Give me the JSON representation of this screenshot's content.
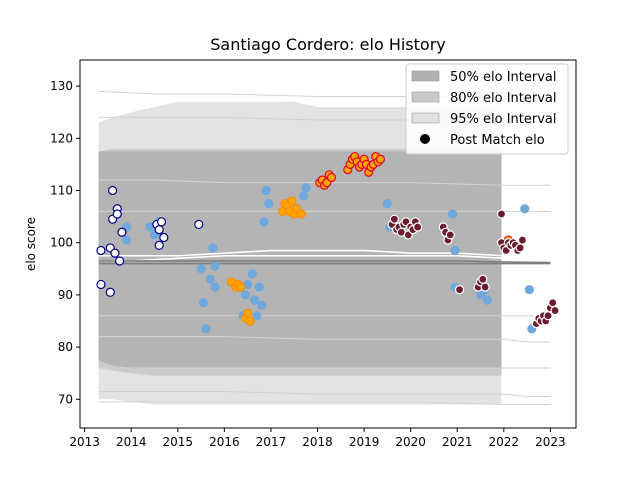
{
  "chart_data": {
    "type": "scatter",
    "title": "Santiago Cordero: elo History",
    "xlabel": "",
    "ylabel": "elo score",
    "xlim": [
      2012.9,
      2023.55
    ],
    "ylim": [
      64.5,
      135
    ],
    "x_ticks": [
      2013,
      2014,
      2015,
      2016,
      2017,
      2018,
      2019,
      2020,
      2021,
      2022,
      2023
    ],
    "x_tick_labels": [
      "2013",
      "2014",
      "2015",
      "2016",
      "2017",
      "2018",
      "2019",
      "2020",
      "2021",
      "2022",
      "2023"
    ],
    "y_ticks": [
      70,
      80,
      90,
      100,
      110,
      120,
      130
    ],
    "y_tick_labels": [
      "70",
      "80",
      "90",
      "100",
      "110",
      "120",
      "130"
    ],
    "legend": {
      "position": "top-right",
      "entries": [
        {
          "label": "50% elo Interval",
          "kind": "patch",
          "color": "#b0b0b0"
        },
        {
          "label": "80% elo Interval",
          "kind": "patch",
          "color": "#c8c8c8"
        },
        {
          "label": "95% elo Interval",
          "kind": "patch",
          "color": "#e0e0e0"
        },
        {
          "label": "Post Match elo",
          "kind": "marker",
          "color": "#000000"
        }
      ]
    },
    "bands": [
      {
        "name": "95% elo Interval",
        "color": "#e3e3e3",
        "x": [
          2013.3,
          2013.6,
          2014.0,
          2014.5,
          2015.0,
          2015.5,
          2016.0,
          2016.5,
          2017.0,
          2017.5,
          2018.0,
          2018.5,
          2019.0,
          2019.5,
          2020.0,
          2020.5,
          2021.0,
          2021.5,
          2021.95
        ],
        "lo": [
          70,
          70,
          69.5,
          69,
          69,
          69,
          69,
          69,
          69,
          69,
          69,
          69,
          69,
          69,
          69,
          69,
          69,
          69,
          69
        ],
        "hi": [
          123,
          124,
          125,
          126,
          127,
          127,
          127,
          127,
          127,
          127,
          126,
          126,
          126,
          126,
          126,
          126,
          126,
          126,
          126
        ]
      },
      {
        "name": "80% elo Interval",
        "color": "#cbcbcb",
        "x": [
          2013.3,
          2013.6,
          2014.0,
          2014.5,
          2015.0,
          2015.5,
          2016.0,
          2016.5,
          2017.0,
          2017.5,
          2018.0,
          2018.5,
          2019.0,
          2019.5,
          2020.0,
          2020.5,
          2021.0,
          2021.5,
          2021.95
        ],
        "lo": [
          76,
          75.5,
          75,
          74.5,
          74.5,
          74.5,
          74.5,
          74.5,
          74.5,
          74.5,
          74.5,
          74.5,
          74.5,
          74.5,
          74.5,
          74.5,
          74.5,
          74.5,
          74.5
        ],
        "hi": [
          117.5,
          118,
          118,
          118,
          118,
          118,
          118,
          118,
          118,
          118,
          118,
          118,
          118,
          118,
          118,
          118,
          118,
          118,
          118
        ]
      },
      {
        "name": "50% elo Interval",
        "color": "#b4b4b4",
        "x": [
          2013.3,
          2013.6,
          2014.0,
          2014.5,
          2015.0,
          2015.5,
          2016.0,
          2016.5,
          2017.0,
          2017.5,
          2018.0,
          2018.5,
          2019.0,
          2019.5,
          2020.0,
          2020.5,
          2021.0,
          2021.5,
          2021.95
        ],
        "lo": [
          77.5,
          76.5,
          76,
          76,
          76,
          76,
          76,
          76,
          76,
          76,
          76,
          76,
          76,
          76,
          76,
          76,
          76,
          76,
          76
        ],
        "hi": [
          117.5,
          117.5,
          117.5,
          117.5,
          117.5,
          117.5,
          117.5,
          117.5,
          117.5,
          117.5,
          117.5,
          117.5,
          117.5,
          117.5,
          117.5,
          117.5,
          117.5,
          117.5,
          117.5
        ]
      }
    ],
    "outer_lines": [
      {
        "color": "#d2d2d2",
        "x": [
          2013.3,
          2014.5,
          2016.0,
          2018.0,
          2020.0,
          2022.0,
          2022.5,
          2023.0
        ],
        "y": [
          129,
          128.5,
          128.5,
          128,
          128,
          128,
          127.5,
          127
        ]
      },
      {
        "color": "#d2d2d2",
        "x": [
          2013.3,
          2014.5,
          2016.0,
          2018.0,
          2020.0,
          2022.0,
          2022.5,
          2023.0
        ],
        "y": [
          124,
          124,
          124,
          123.5,
          123.5,
          123.5,
          123,
          123
        ]
      },
      {
        "color": "#d2d2d2",
        "x": [
          2013.3,
          2014.5,
          2016.0,
          2018.0,
          2020.0,
          2022.0,
          2022.5,
          2023.0
        ],
        "y": [
          112,
          112,
          111.5,
          111.5,
          111.5,
          111,
          111,
          111
        ]
      },
      {
        "color": "#d2d2d2",
        "x": [
          2013.3,
          2014.5,
          2016.0,
          2018.0,
          2020.0,
          2022.0,
          2022.5,
          2023.0
        ],
        "y": [
          106,
          106,
          106,
          106,
          106,
          106,
          106,
          106
        ]
      },
      {
        "color": "#d2d2d2",
        "x": [
          2013.3,
          2014.5,
          2016.0,
          2018.0,
          2020.0,
          2022.0,
          2022.5,
          2023.0
        ],
        "y": [
          86,
          86,
          86,
          86,
          86,
          86,
          86,
          86
        ]
      },
      {
        "color": "#d2d2d2",
        "x": [
          2013.3,
          2014.5,
          2016.0,
          2018.0,
          2020.0,
          2022.0,
          2022.5,
          2023.0
        ],
        "y": [
          82,
          82,
          82,
          81.5,
          81.5,
          81.5,
          81,
          81
        ]
      },
      {
        "color": "#d2d2d2",
        "x": [
          2013.3,
          2014.5,
          2016.0,
          2018.0,
          2020.0,
          2022.0,
          2022.5,
          2023.0
        ],
        "y": [
          76,
          76,
          76,
          76,
          76,
          76,
          76,
          76
        ]
      },
      {
        "color": "#d2d2d2",
        "x": [
          2013.3,
          2014.5,
          2016.0,
          2018.0,
          2020.0,
          2022.0,
          2022.5,
          2023.0
        ],
        "y": [
          71.5,
          71.5,
          71.5,
          71,
          71,
          71,
          70.5,
          70.5
        ]
      },
      {
        "color": "#d2d2d2",
        "x": [
          2013.3,
          2014.5,
          2016.0,
          2018.0,
          2020.0,
          2022.0,
          2022.5,
          2023.0
        ],
        "y": [
          69.5,
          69.5,
          69.5,
          69.5,
          69.5,
          69,
          69,
          69
        ]
      }
    ],
    "mean_lines": [
      {
        "color": "#ffffff",
        "x": [
          2013.3,
          2014.0,
          2015.0,
          2016.0,
          2017.0,
          2018.0,
          2019.0,
          2020.0,
          2021.0,
          2022.0,
          2023.0
        ],
        "y": [
          97.5,
          97.5,
          97.5,
          98,
          98.5,
          98.5,
          98.5,
          98,
          98,
          97.5,
          97.5
        ]
      },
      {
        "color": "#ffffff",
        "x": [
          2013.3,
          2014.0,
          2015.0,
          2016.0,
          2017.0,
          2018.0,
          2019.0,
          2020.0,
          2021.0,
          2022.0,
          2023.0
        ],
        "y": [
          96.5,
          96.5,
          97,
          97.5,
          97.5,
          97.5,
          97.5,
          97.5,
          97.5,
          97,
          96.5
        ]
      },
      {
        "color": "#7f7f7f",
        "x": [
          2013.3,
          2014.0,
          2015.0,
          2016.0,
          2017.0,
          2018.0,
          2019.0,
          2020.0,
          2021.0,
          2022.0,
          2023.0
        ],
        "y": [
          96.5,
          96.5,
          96.5,
          96.5,
          96.5,
          96.5,
          96.5,
          96.5,
          96.5,
          96.3,
          96.2
        ]
      },
      {
        "color": "#7f7f7f",
        "x": [
          2013.3,
          2014.0,
          2015.0,
          2016.0,
          2017.0,
          2018.0,
          2019.0,
          2020.0,
          2021.0,
          2022.0,
          2023.0
        ],
        "y": [
          96,
          96,
          96,
          96,
          96,
          96,
          96,
          96,
          96,
          96,
          96
        ]
      }
    ],
    "series": [
      {
        "fill": "#6fa8dc",
        "stroke": "#6fa8dc",
        "points": [
          [
            2013.9,
            103
          ],
          [
            2013.9,
            100.5
          ],
          [
            2014.4,
            103
          ],
          [
            2014.5,
            101.5
          ],
          [
            2014.6,
            104
          ],
          [
            2015.5,
            95
          ],
          [
            2015.55,
            88.5
          ],
          [
            2015.6,
            83.5
          ],
          [
            2015.7,
            93
          ],
          [
            2015.75,
            99
          ],
          [
            2015.8,
            95.5
          ],
          [
            2015.8,
            91.5
          ],
          [
            2016.3,
            91.5
          ],
          [
            2016.4,
            86
          ],
          [
            2016.45,
            90
          ],
          [
            2016.5,
            92
          ],
          [
            2016.6,
            94
          ],
          [
            2016.65,
            89
          ],
          [
            2016.7,
            86
          ],
          [
            2016.75,
            91.5
          ],
          [
            2016.8,
            88
          ],
          [
            2016.85,
            104
          ],
          [
            2016.9,
            110
          ],
          [
            2016.95,
            107.5
          ],
          [
            2017.7,
            109
          ],
          [
            2017.75,
            110.5
          ],
          [
            2019.5,
            107.5
          ],
          [
            2019.55,
            103
          ],
          [
            2020.9,
            105.5
          ],
          [
            2020.95,
            98.5
          ],
          [
            2020.95,
            91.5
          ],
          [
            2021.5,
            90
          ],
          [
            2021.6,
            91
          ],
          [
            2021.65,
            89
          ],
          [
            2022.45,
            106.5
          ],
          [
            2022.55,
            91
          ],
          [
            2022.6,
            83.5
          ]
        ]
      },
      {
        "fill": "#ffffff",
        "stroke": "#00008b",
        "points": [
          [
            2013.35,
            98.5
          ],
          [
            2013.35,
            92
          ],
          [
            2013.55,
            90.5
          ],
          [
            2013.55,
            99
          ],
          [
            2013.6,
            104.5
          ],
          [
            2013.6,
            110
          ],
          [
            2013.65,
            98
          ],
          [
            2013.7,
            106.5
          ],
          [
            2013.7,
            105.5
          ],
          [
            2013.75,
            96.5
          ],
          [
            2013.8,
            102
          ],
          [
            2014.55,
            103.5
          ],
          [
            2014.6,
            102.5
          ],
          [
            2014.6,
            99.5
          ],
          [
            2014.65,
            104
          ],
          [
            2014.7,
            101
          ],
          [
            2015.45,
            103.5
          ]
        ]
      },
      {
        "fill": "#ffa500",
        "stroke": "#ff8c00",
        "points": [
          [
            2016.15,
            92.5
          ],
          [
            2016.25,
            91.5
          ],
          [
            2016.3,
            92
          ],
          [
            2016.35,
            91.5
          ],
          [
            2016.45,
            85.5
          ],
          [
            2016.5,
            86.5
          ],
          [
            2016.55,
            85
          ],
          [
            2017.25,
            106
          ],
          [
            2017.3,
            107.5
          ],
          [
            2017.35,
            107
          ],
          [
            2017.4,
            106
          ],
          [
            2017.45,
            108
          ],
          [
            2017.5,
            105.5
          ],
          [
            2017.55,
            106.5
          ],
          [
            2017.65,
            105.5
          ]
        ]
      },
      {
        "fill": "#ffa500",
        "stroke": "#e4002b",
        "points": [
          [
            2018.05,
            111.5
          ],
          [
            2018.1,
            112
          ],
          [
            2018.15,
            111
          ],
          [
            2018.2,
            111.5
          ],
          [
            2018.25,
            113
          ],
          [
            2018.3,
            112.5
          ],
          [
            2018.65,
            114
          ],
          [
            2018.7,
            115
          ],
          [
            2018.75,
            116
          ],
          [
            2018.8,
            116.5
          ],
          [
            2018.85,
            115.5
          ],
          [
            2018.9,
            114.5
          ],
          [
            2018.95,
            115
          ],
          [
            2019.0,
            116
          ],
          [
            2019.05,
            115
          ],
          [
            2019.1,
            113.5
          ],
          [
            2019.15,
            114.5
          ],
          [
            2019.2,
            115
          ],
          [
            2019.25,
            116.5
          ],
          [
            2019.3,
            115.5
          ],
          [
            2019.35,
            116
          ],
          [
            2022.1,
            100.5
          ]
        ]
      },
      {
        "fill": "#6b1c2e",
        "stroke": "#ffffff",
        "points": [
          [
            2019.6,
            103.5
          ],
          [
            2019.65,
            104.5
          ],
          [
            2019.7,
            102.5
          ],
          [
            2019.75,
            103
          ],
          [
            2019.8,
            102
          ],
          [
            2019.85,
            103.5
          ],
          [
            2019.9,
            104
          ],
          [
            2019.95,
            101.5
          ],
          [
            2020.0,
            103
          ],
          [
            2020.05,
            102.5
          ],
          [
            2020.1,
            104
          ],
          [
            2020.15,
            103
          ],
          [
            2020.7,
            103
          ],
          [
            2020.75,
            102
          ],
          [
            2020.8,
            100.5
          ],
          [
            2020.85,
            101.5
          ],
          [
            2021.05,
            91
          ],
          [
            2021.45,
            91.5
          ],
          [
            2021.5,
            92.5
          ],
          [
            2021.55,
            93
          ],
          [
            2021.6,
            91.5
          ],
          [
            2021.95,
            105.5
          ],
          [
            2021.95,
            100
          ],
          [
            2022.0,
            99
          ],
          [
            2022.05,
            98.5
          ],
          [
            2022.1,
            100
          ],
          [
            2022.15,
            99.5
          ],
          [
            2022.2,
            100
          ],
          [
            2022.25,
            99.5
          ],
          [
            2022.3,
            98.5
          ],
          [
            2022.35,
            99
          ],
          [
            2022.4,
            100.5
          ],
          [
            2022.7,
            84.5
          ],
          [
            2022.75,
            85.5
          ],
          [
            2022.8,
            85
          ],
          [
            2022.85,
            86
          ],
          [
            2022.9,
            85
          ],
          [
            2022.95,
            86
          ],
          [
            2023.0,
            87.5
          ],
          [
            2023.05,
            88.5
          ],
          [
            2023.1,
            87
          ]
        ]
      }
    ]
  }
}
